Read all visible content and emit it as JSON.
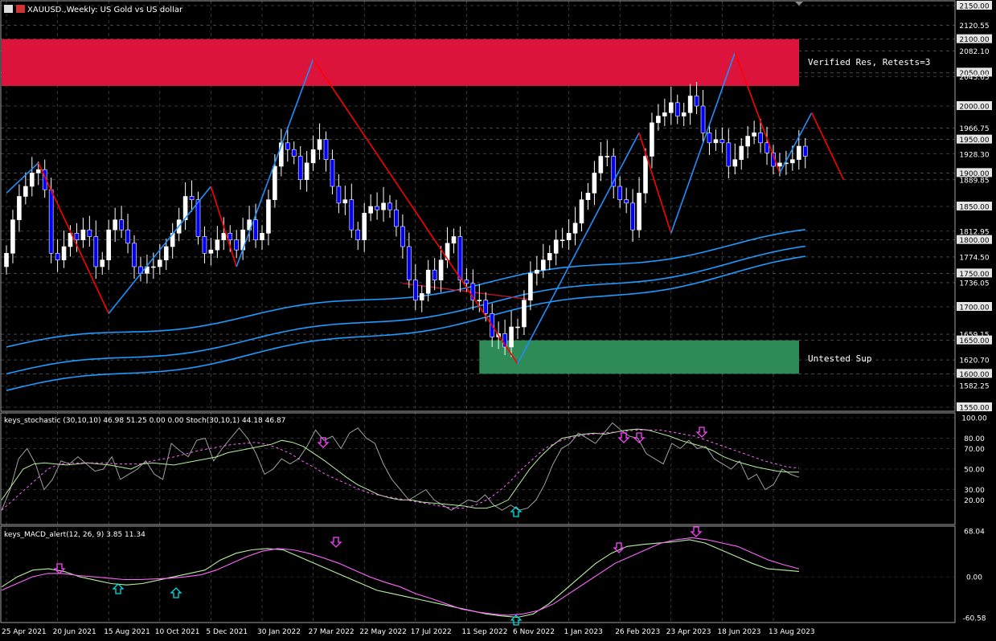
{
  "header": {
    "title": "XAUUSD.,Weekly: US Gold vs US dollar",
    "stoch_label": "keys_stochastic (30,10,10) 46.98 51.25 0.00 0.00 Stoch(30,10,1) 44.18 46.87",
    "macd_label": "keys_MACD_alert(12, 26, 9) 3.85 11.34"
  },
  "zones": {
    "resistance": {
      "label": "Verified Res, Retests=3",
      "from": 2030,
      "to": 2100,
      "color": "#dc143c"
    },
    "support": {
      "label": "Untested Sup",
      "from": 1600,
      "to": 1650,
      "color": "#2e8b57"
    }
  },
  "colors": {
    "bull": "#ffffff",
    "bear": "#0000ff",
    "zigzag_up": "#1e90ff",
    "zigzag_down": "#ff0000",
    "ma": "#1e9bff",
    "mid_line": "#c0102a",
    "grid": "#c8c8c8"
  },
  "chart_data": [
    {
      "type": "candlestick",
      "ylim": [
        1550,
        2150
      ],
      "yticks": [
        "2150.00",
        "2120.55",
        "2100.00",
        "2082.10",
        "2050.00",
        "2043.65",
        "2000.00",
        "1966.75",
        "1950.00",
        "1928.30",
        "1900.00",
        "1889.85",
        "1850.00",
        "1812.95",
        "1800.00",
        "1774.50",
        "1750.00",
        "1736.05",
        "1700.00",
        "1659.15",
        "1650.00",
        "1620.70",
        "1600.00",
        "1582.25",
        "1550.00"
      ],
      "xticks": [
        {
          "label": "25 Apr 2021",
          "index": 0
        },
        {
          "label": "20 Jun 2021",
          "index": 8
        },
        {
          "label": "15 Aug 2021",
          "index": 16
        },
        {
          "label": "10 Oct 2021",
          "index": 24
        },
        {
          "label": "5 Dec 2021",
          "index": 32
        },
        {
          "label": "30 Jan 2022",
          "index": 40
        },
        {
          "label": "27 Mar 2022",
          "index": 48
        },
        {
          "label": "22 May 2022",
          "index": 56
        },
        {
          "label": "17 Jul 2022",
          "index": 64
        },
        {
          "label": "11 Sep 2022",
          "index": 72
        },
        {
          "label": "6 Nov 2022",
          "index": 80
        },
        {
          "label": "1 Jan 2023",
          "index": 88
        },
        {
          "label": "26 Feb 2023",
          "index": 96
        },
        {
          "label": "23 Apr 2023",
          "index": 104
        },
        {
          "label": "18 Jun 2023",
          "index": 112
        },
        {
          "label": "13 Aug 2023",
          "index": 120
        }
      ],
      "closes": [
        1780,
        1830,
        1865,
        1880,
        1900,
        1905,
        1875,
        1780,
        1770,
        1790,
        1810,
        1800,
        1815,
        1805,
        1760,
        1770,
        1815,
        1830,
        1815,
        1795,
        1760,
        1750,
        1760,
        1760,
        1770,
        1790,
        1810,
        1830,
        1865,
        1860,
        1805,
        1780,
        1785,
        1800,
        1810,
        1800,
        1785,
        1815,
        1830,
        1800,
        1810,
        1860,
        1910,
        1945,
        1935,
        1925,
        1890,
        1915,
        1935,
        1950,
        1920,
        1880,
        1855,
        1860,
        1815,
        1800,
        1840,
        1850,
        1845,
        1855,
        1845,
        1820,
        1790,
        1740,
        1710,
        1720,
        1755,
        1740,
        1770,
        1795,
        1805,
        1740,
        1735,
        1710,
        1710,
        1690,
        1655,
        1660,
        1640,
        1670,
        1670,
        1710,
        1750,
        1755,
        1770,
        1780,
        1800,
        1800,
        1810,
        1825,
        1860,
        1870,
        1900,
        1925,
        1925,
        1880,
        1860,
        1855,
        1815,
        1870,
        1925,
        1975,
        1985,
        1990,
        2005,
        1985,
        1990,
        2015,
        2000,
        1960,
        1945,
        1950,
        1945,
        1910,
        1920,
        1940,
        1955,
        1960,
        1945,
        1930,
        1910,
        1915,
        1915,
        1920,
        1940,
        1925
      ],
      "zigzag": [
        [
          0,
          1870
        ],
        [
          5,
          1915
        ],
        [
          16,
          1690
        ],
        [
          32,
          1880
        ],
        [
          36,
          1760
        ],
        [
          48,
          2070
        ],
        [
          80,
          1615
        ],
        [
          99,
          1960
        ],
        [
          104,
          1810
        ],
        [
          114,
          2080
        ],
        [
          121,
          1900
        ],
        [
          126,
          1990
        ],
        [
          131,
          1890
        ]
      ],
      "ma_lines": [
        {
          "from": 1640,
          "to": 1810
        },
        {
          "from": 1600,
          "to": 1785
        },
        {
          "from": 1575,
          "to": 1770
        }
      ]
    },
    {
      "type": "line",
      "title": "keys_stochastic (30,10,10)",
      "ylim": [
        0,
        100
      ],
      "yticks": [
        "100.00",
        "80.00",
        "70.00",
        "50.00",
        "30.00",
        "20.00"
      ],
      "series": [
        {
          "values": [
            10,
            30,
            60,
            70,
            55,
            30,
            40,
            58,
            55,
            62,
            55,
            48,
            50,
            62,
            40,
            45,
            50,
            58,
            45,
            40,
            75,
            68,
            62,
            78,
            80,
            58,
            70,
            80,
            90,
            80,
            65,
            45,
            50,
            60,
            55,
            60,
            72,
            88,
            78,
            82,
            70,
            85,
            90,
            80,
            75,
            55,
            40,
            30,
            20,
            25,
            30,
            20,
            15,
            10,
            15,
            20,
            18,
            25,
            15,
            10,
            15,
            10,
            12,
            20,
            35,
            55,
            70,
            75,
            85,
            80,
            75,
            85,
            95,
            88,
            82,
            80,
            65,
            60,
            55,
            75,
            70,
            78,
            70,
            72,
            60,
            55,
            50,
            58,
            40,
            45,
            30,
            35,
            50,
            45,
            42
          ]
        },
        {
          "values": [
            20,
            35,
            50,
            55,
            56,
            55,
            54,
            55,
            56,
            55,
            54,
            52,
            50,
            55,
            56,
            55,
            54,
            56,
            58,
            60,
            62,
            66,
            68,
            70,
            72,
            74,
            78,
            76,
            72,
            65,
            58,
            50,
            42,
            35,
            30,
            25,
            22,
            20,
            20,
            18,
            17,
            16,
            15,
            14,
            12,
            12,
            15,
            20,
            35,
            50,
            62,
            72,
            80,
            82,
            84,
            85,
            84,
            86,
            88,
            89,
            88,
            85,
            82,
            78,
            75,
            72,
            68,
            62,
            58,
            55,
            52,
            50,
            48,
            47,
            47
          ]
        },
        {
          "values": [
            10,
            20,
            30,
            40,
            50,
            55,
            56,
            56,
            56,
            56,
            55,
            55,
            55,
            58,
            60,
            62,
            65,
            68,
            70,
            72,
            74,
            75,
            76,
            74,
            70,
            65,
            58,
            52,
            45,
            40,
            35,
            30,
            26,
            24,
            22,
            20,
            18,
            16,
            14,
            12,
            12,
            15,
            20,
            28,
            38,
            50,
            60,
            70,
            76,
            80,
            82,
            84,
            85,
            86,
            87,
            88,
            88,
            88,
            86,
            84,
            82,
            78,
            74,
            70,
            66,
            62,
            58,
            55,
            52,
            51
          ]
        }
      ]
    },
    {
      "type": "line",
      "title": "keys_MACD_alert(12, 26, 9)",
      "ylim": [
        -60.58,
        68.04
      ],
      "yticks": [
        "68.04",
        "0.00",
        "-60.58"
      ],
      "series": [
        {
          "values": [
            -15,
            0,
            10,
            12,
            8,
            0,
            -5,
            -10,
            -12,
            -10,
            -5,
            0,
            5,
            10,
            25,
            35,
            40,
            42,
            40,
            30,
            20,
            10,
            0,
            -10,
            -20,
            -25,
            -30,
            -35,
            -40,
            -45,
            -50,
            -55,
            -58,
            -60,
            -55,
            -40,
            -20,
            0,
            20,
            35,
            45,
            48,
            50,
            52,
            55,
            50,
            40,
            30,
            20,
            12,
            10,
            8
          ]
        },
        {
          "values": [
            -20,
            -10,
            0,
            5,
            5,
            2,
            0,
            -2,
            -4,
            -4,
            -3,
            -2,
            0,
            3,
            10,
            20,
            30,
            38,
            42,
            40,
            35,
            28,
            20,
            10,
            0,
            -8,
            -15,
            -25,
            -32,
            -40,
            -48,
            -52,
            -55,
            -57,
            -55,
            -50,
            -40,
            -25,
            -10,
            5,
            20,
            30,
            40,
            50,
            55,
            58,
            55,
            50,
            45,
            35,
            25,
            18,
            12
          ]
        }
      ]
    }
  ]
}
